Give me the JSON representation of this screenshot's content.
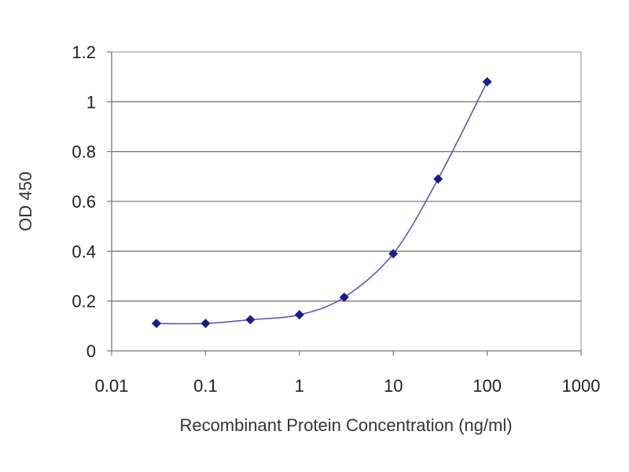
{
  "chart_data": {
    "type": "line",
    "xscale": "log",
    "xlabel": "Recombinant Protein Concentration (ng/ml)",
    "ylabel": "OD 450",
    "xlim": [
      0.01,
      1000
    ],
    "ylim": [
      0,
      1.2
    ],
    "xticks": [
      "0.01",
      "0.1",
      "1",
      "10",
      "100",
      "1000"
    ],
    "xtick_values": [
      0.01,
      0.1,
      1,
      10,
      100,
      1000
    ],
    "yticks": [
      "0",
      "0.2",
      "0.4",
      "0.6",
      "0.8",
      "1",
      "1.2"
    ],
    "ytick_values": [
      0,
      0.2,
      0.4,
      0.6,
      0.8,
      1.0,
      1.2
    ],
    "grid": "horizontal",
    "legend": "none",
    "series": [
      {
        "x": [
          0.03,
          0.1,
          0.3,
          1,
          3,
          10,
          30,
          100
        ],
        "y": [
          0.11,
          0.11,
          0.125,
          0.145,
          0.215,
          0.39,
          0.69,
          1.08
        ],
        "color": "#1c1c8a",
        "marker": "diamond",
        "line_color": "#5a5ab8"
      }
    ]
  }
}
